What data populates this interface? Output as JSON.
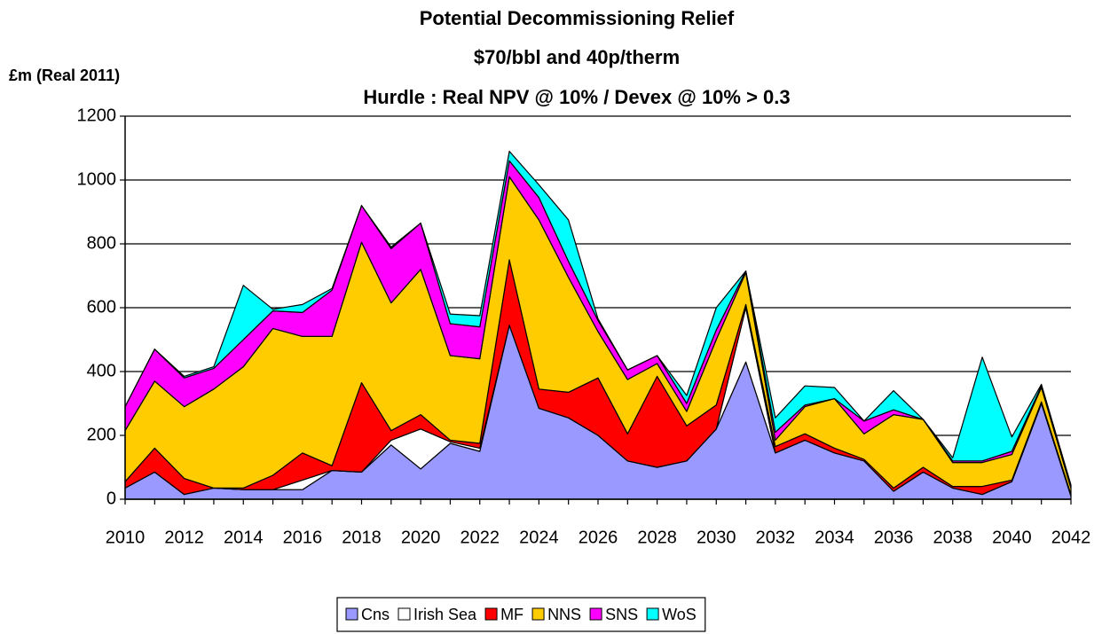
{
  "chart_data": {
    "type": "stacked_area",
    "title": [
      "Potential Decommissioning Relief",
      "$70/bbl and 40p/therm",
      "Hurdle : Real NPV @ 10% / Devex @ 10% > 0.3"
    ],
    "y_label": "£m (Real 2011)",
    "x": [
      2010,
      2011,
      2012,
      2013,
      2014,
      2015,
      2016,
      2017,
      2018,
      2019,
      2020,
      2021,
      2022,
      2023,
      2024,
      2025,
      2026,
      2027,
      2028,
      2029,
      2030,
      2031,
      2032,
      2033,
      2034,
      2035,
      2036,
      2037,
      2038,
      2039,
      2040,
      2041,
      2042
    ],
    "xlim": [
      2010,
      2042
    ],
    "xticks": [
      2010,
      2012,
      2014,
      2016,
      2018,
      2020,
      2022,
      2024,
      2026,
      2028,
      2030,
      2032,
      2034,
      2036,
      2038,
      2040,
      2042
    ],
    "ylim": [
      0,
      1200
    ],
    "yticks": [
      0,
      200,
      400,
      600,
      800,
      1000,
      1200
    ],
    "grid": true,
    "legend": "bottom",
    "series": [
      {
        "name": "Cns",
        "color": "#9999ff",
        "values": [
          35,
          85,
          15,
          35,
          30,
          30,
          30,
          90,
          85,
          170,
          95,
          175,
          150,
          545,
          285,
          255,
          200,
          120,
          100,
          120,
          220,
          430,
          145,
          185,
          145,
          120,
          25,
          85,
          35,
          15,
          55,
          300,
          10
        ]
      },
      {
        "name": "Irish Sea",
        "color": "#ffffff",
        "values": [
          0,
          0,
          0,
          0,
          0,
          0,
          30,
          0,
          0,
          15,
          125,
          5,
          10,
          0,
          0,
          0,
          0,
          0,
          0,
          0,
          0,
          170,
          0,
          0,
          0,
          0,
          0,
          0,
          0,
          0,
          0,
          0,
          0
        ]
      },
      {
        "name": "MF",
        "color": "#ff0000",
        "values": [
          20,
          75,
          50,
          0,
          5,
          45,
          85,
          15,
          280,
          30,
          45,
          5,
          15,
          205,
          60,
          80,
          180,
          85,
          285,
          110,
          75,
          10,
          20,
          20,
          15,
          5,
          10,
          15,
          5,
          25,
          5,
          5,
          5
        ]
      },
      {
        "name": "NNS",
        "color": "#ffcc00",
        "values": [
          160,
          210,
          225,
          310,
          380,
          460,
          365,
          405,
          440,
          400,
          455,
          265,
          265,
          260,
          530,
          360,
          145,
          170,
          40,
          45,
          205,
          100,
          20,
          85,
          155,
          80,
          230,
          150,
          75,
          75,
          80,
          45,
          20
        ]
      },
      {
        "name": "SNS",
        "color": "#ff00ff",
        "values": [
          75,
          100,
          90,
          65,
          85,
          55,
          75,
          145,
          115,
          170,
          145,
          100,
          100,
          50,
          70,
          50,
          35,
          30,
          25,
          25,
          30,
          5,
          25,
          5,
          0,
          40,
          15,
          0,
          5,
          5,
          10,
          5,
          5
        ]
      },
      {
        "name": "WoS",
        "color": "#00ffff",
        "values": [
          0,
          0,
          5,
          5,
          170,
          5,
          25,
          5,
          0,
          5,
          0,
          30,
          35,
          30,
          40,
          130,
          5,
          0,
          0,
          25,
          70,
          0,
          45,
          60,
          35,
          0,
          60,
          0,
          10,
          325,
          45,
          5,
          5
        ]
      }
    ]
  }
}
